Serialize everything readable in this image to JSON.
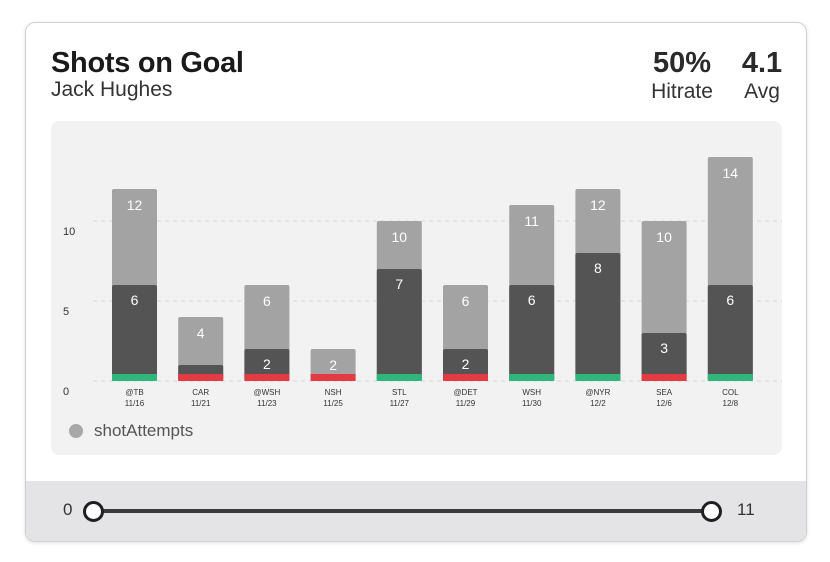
{
  "header": {
    "title": "Shots on Goal",
    "player": "Jack Hughes",
    "hitrate_value": "50%",
    "hitrate_label": "Hitrate",
    "avg_value": "4.1",
    "avg_label": "Avg"
  },
  "chart_data": {
    "type": "bar",
    "categories": [
      "@TB",
      "CAR",
      "@WSH",
      "NSH",
      "STL",
      "@DET",
      "WSH",
      "@NYR",
      "SEA",
      "COL"
    ],
    "dates": [
      "11/16",
      "11/21",
      "11/23",
      "11/25",
      "11/27",
      "11/29",
      "11/30",
      "12/2",
      "12/6",
      "12/8"
    ],
    "series": [
      {
        "name": "shotAttempts",
        "values": [
          12,
          4,
          6,
          2,
          10,
          6,
          11,
          12,
          10,
          14
        ],
        "color": "#a3a3a3"
      },
      {
        "values": [
          6,
          1,
          2,
          0,
          7,
          2,
          6,
          8,
          3,
          6
        ],
        "color": "#545454"
      }
    ],
    "hit": [
      true,
      false,
      false,
      false,
      true,
      false,
      true,
      true,
      false,
      true
    ],
    "colors": {
      "hit": "#2fb67a",
      "miss": "#e23b44"
    },
    "yticks": [
      0,
      5,
      10
    ],
    "ylim": [
      0,
      15
    ],
    "legend": "bottom-left",
    "grid": true
  },
  "slider": {
    "min_label": "0",
    "max_label": "11",
    "low": 0,
    "high": 11
  }
}
